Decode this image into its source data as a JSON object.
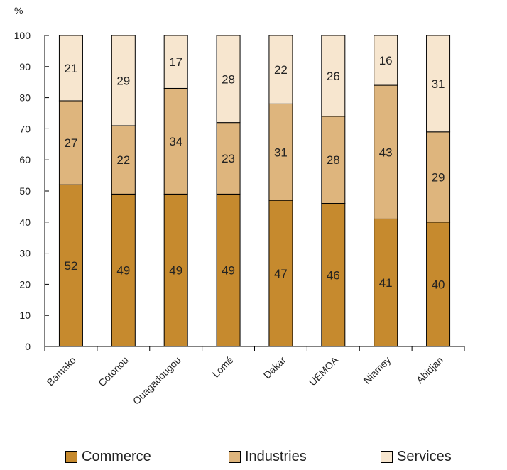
{
  "chart_data": {
    "type": "bar",
    "stacked": true,
    "ylabel": "%",
    "ylim": [
      0,
      100
    ],
    "yticks": [
      0,
      10,
      20,
      30,
      40,
      50,
      60,
      70,
      80,
      90,
      100
    ],
    "categories": [
      "Bamako",
      "Cotonou",
      "Ouagadougou",
      "Lomé",
      "Dakar",
      "UEMOA",
      "Niamey",
      "Abidjan"
    ],
    "series": [
      {
        "name": "Commerce",
        "color": "#c68a2e",
        "values": [
          52,
          49,
          49,
          49,
          47,
          46,
          41,
          40
        ]
      },
      {
        "name": "Industries",
        "color": "#deb57d",
        "values": [
          27,
          22,
          34,
          23,
          31,
          28,
          43,
          29
        ]
      },
      {
        "name": "Services",
        "color": "#f7e6cf",
        "values": [
          21,
          29,
          17,
          28,
          22,
          26,
          16,
          31
        ]
      }
    ],
    "legend_position": "bottom",
    "grid": false
  }
}
